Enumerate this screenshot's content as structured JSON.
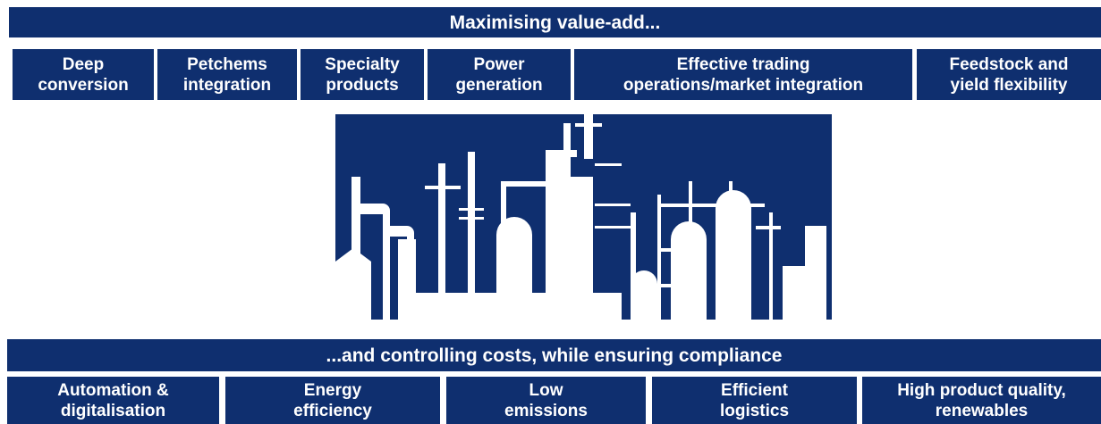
{
  "header": {
    "title": "Maximising value-add..."
  },
  "top_items": [
    {
      "lines": [
        "Deep",
        "conversion"
      ]
    },
    {
      "lines": [
        "Petchems",
        "integration"
      ]
    },
    {
      "lines": [
        "Specialty",
        "products"
      ]
    },
    {
      "lines": [
        "Power",
        "generation"
      ]
    },
    {
      "lines": [
        "Effective trading",
        "operations/market integration"
      ]
    },
    {
      "lines": [
        "Feedstock and",
        "yield flexibility"
      ]
    }
  ],
  "footer": {
    "title": "...and controlling costs, while ensuring compliance"
  },
  "bottom_items": [
    {
      "lines": [
        "Automation &",
        "digitalisation"
      ]
    },
    {
      "lines": [
        "Energy",
        "efficiency"
      ]
    },
    {
      "lines": [
        "Low",
        "emissions"
      ]
    },
    {
      "lines": [
        "Efficient",
        "logistics"
      ]
    },
    {
      "lines": [
        "High product quality,",
        "renewables"
      ]
    }
  ]
}
